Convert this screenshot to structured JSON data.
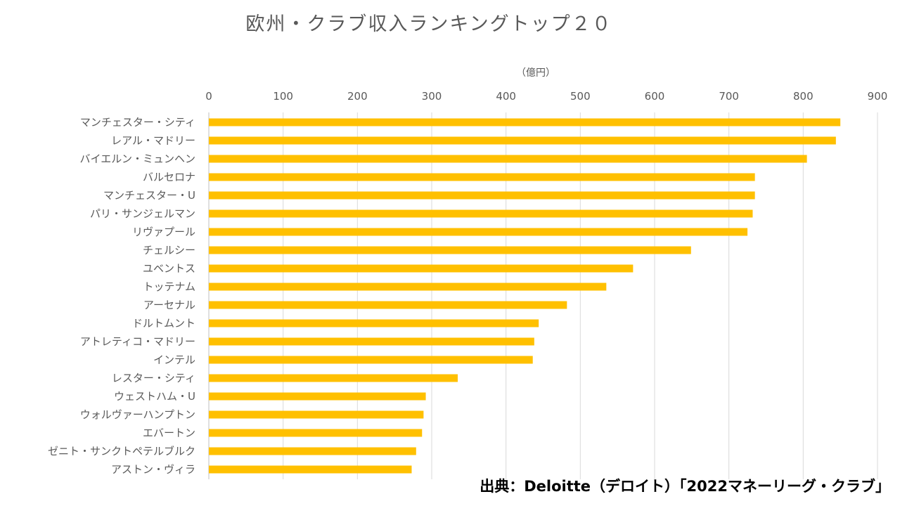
{
  "chart_data": {
    "type": "bar",
    "orientation": "horizontal",
    "title": "欧州・クラブ収入ランキングトップ２０",
    "unit_label": "（億円）",
    "xlim": [
      0,
      900
    ],
    "x_ticks": [
      "0",
      "100",
      "200",
      "300",
      "400",
      "500",
      "600",
      "700",
      "800",
      "900"
    ],
    "x_tick_values": [
      0,
      100,
      200,
      300,
      400,
      500,
      600,
      700,
      800,
      900
    ],
    "x_axis_position": "top",
    "grid": true,
    "bar_color": "#FFC000",
    "categories": [
      "マンチェスター・シティ",
      "レアル・マドリー",
      "バイエルン・ミュンヘン",
      "バルセロナ",
      "マンチェスター・U",
      "パリ・サンジェルマン",
      "リヴァプール",
      "チェルシー",
      "ユベントス",
      "トッテナム",
      "アーセナル",
      "ドルトムント",
      "アトレティコ・マドリー",
      "インテル",
      "レスター・シティ",
      "ウェストハム・U",
      "ウォルヴァーハンプトン",
      "エバートン",
      "ゼニト・サンクトペテルブルク",
      "アストン・ヴィラ"
    ],
    "values": [
      850,
      844,
      805,
      735,
      735,
      732,
      725,
      649,
      571,
      535,
      482,
      444,
      438,
      436,
      335,
      292,
      289,
      287,
      279,
      273
    ]
  },
  "source": "出典：Deloitte（デロイト）「2022マネーリーグ・クラブ」"
}
